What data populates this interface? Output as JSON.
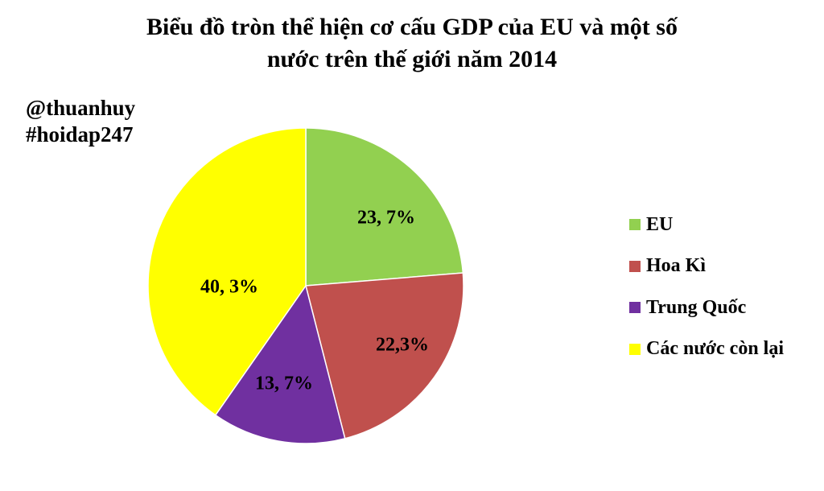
{
  "chart_data": {
    "type": "pie",
    "title_lines": [
      "Biểu đồ tròn thể hiện cơ cấu GDP của EU và một số",
      "nước trên thế giới năm 2014"
    ],
    "slices": [
      {
        "name": "EU",
        "value": 23.7,
        "label": "23, 7%",
        "color": "#92d050"
      },
      {
        "name": "Hoa Kì",
        "value": 22.3,
        "label": "22,3%",
        "color": "#c0504d"
      },
      {
        "name": "Trung  Quốc",
        "value": 13.7,
        "label": "13, 7%",
        "color": "#7030a0"
      },
      {
        "name": "Các nước còn lại",
        "value": 40.3,
        "label": "40, 3%",
        "color": "#ffff00"
      }
    ],
    "legend_position": "right"
  },
  "watermark": {
    "line1": "@thuanhuy",
    "line2": "#hoidap247"
  }
}
